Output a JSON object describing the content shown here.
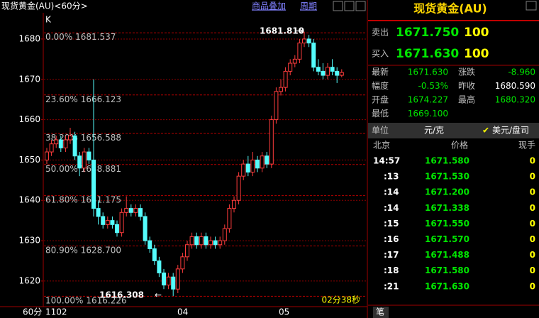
{
  "header": {
    "title": "现货黄金(AU)<60分>",
    "overlay": "商品叠加",
    "period": "周期"
  },
  "chart": {
    "type": "candlestick",
    "label": "K",
    "ylim": [
      1614,
      1686.5
    ],
    "yticks": [
      1620,
      1630,
      1640,
      1650,
      1660,
      1670,
      1680
    ],
    "grid": true,
    "up_color": "#ff3c3c",
    "down_color": "#54fcfc",
    "candles": [
      [
        1650,
        1653,
        1649,
        1652
      ],
      [
        1652,
        1655,
        1651,
        1654
      ],
      [
        1654,
        1656,
        1653,
        1655
      ],
      [
        1655,
        1656,
        1652,
        1653
      ],
      [
        1653,
        1656,
        1652,
        1655
      ],
      [
        1655,
        1658,
        1654,
        1656
      ],
      [
        1656,
        1657,
        1650,
        1651
      ],
      [
        1651,
        1652,
        1646,
        1648
      ],
      [
        1648,
        1653,
        1647,
        1652
      ],
      [
        1652,
        1653,
        1649,
        1650
      ],
      [
        1650,
        1670,
        1636,
        1638
      ],
      [
        1638,
        1640,
        1634,
        1636
      ],
      [
        1636,
        1637,
        1633,
        1634
      ],
      [
        1634,
        1636,
        1633,
        1635
      ],
      [
        1635,
        1636,
        1633,
        1634
      ],
      [
        1634,
        1635,
        1631,
        1632
      ],
      [
        1632,
        1638,
        1631,
        1637
      ],
      [
        1637,
        1641,
        1636,
        1638
      ],
      [
        1638,
        1639,
        1636,
        1637
      ],
      [
        1637,
        1639,
        1636,
        1638
      ],
      [
        1638,
        1639,
        1635,
        1636
      ],
      [
        1636,
        1637,
        1629,
        1630
      ],
      [
        1630,
        1631,
        1627,
        1628
      ],
      [
        1628,
        1629,
        1624,
        1625
      ],
      [
        1625,
        1626,
        1621,
        1622
      ],
      [
        1622,
        1623,
        1618,
        1619
      ],
      [
        1619,
        1622,
        1618,
        1621
      ],
      [
        1621,
        1622,
        1616.3,
        1618
      ],
      [
        1618,
        1624,
        1617,
        1623
      ],
      [
        1623,
        1627,
        1622,
        1626
      ],
      [
        1626,
        1630,
        1625,
        1629
      ],
      [
        1629,
        1632,
        1628,
        1631
      ],
      [
        1631,
        1632,
        1628,
        1629
      ],
      [
        1629,
        1632,
        1628,
        1631
      ],
      [
        1631,
        1632,
        1628,
        1629
      ],
      [
        1629,
        1631,
        1628,
        1630
      ],
      [
        1630,
        1631,
        1628,
        1629
      ],
      [
        1629,
        1631,
        1628,
        1630
      ],
      [
        1630,
        1634,
        1629,
        1633
      ],
      [
        1633,
        1639,
        1632,
        1638
      ],
      [
        1638,
        1641,
        1637,
        1640
      ],
      [
        1640,
        1647,
        1639,
        1646
      ],
      [
        1646,
        1650,
        1645,
        1649
      ],
      [
        1649,
        1651,
        1646,
        1647
      ],
      [
        1647,
        1652,
        1646,
        1650
      ],
      [
        1650,
        1651,
        1647,
        1648
      ],
      [
        1648,
        1652,
        1647,
        1651
      ],
      [
        1651,
        1652,
        1648,
        1649
      ],
      [
        1649,
        1661,
        1648,
        1660
      ],
      [
        1660,
        1668,
        1659,
        1667
      ],
      [
        1667,
        1670,
        1666,
        1668
      ],
      [
        1668,
        1673,
        1667,
        1672
      ],
      [
        1672,
        1675,
        1671,
        1674
      ],
      [
        1674,
        1676,
        1673,
        1675
      ],
      [
        1675,
        1680,
        1674,
        1679
      ],
      [
        1679,
        1681.81,
        1678,
        1680
      ],
      [
        1680,
        1681,
        1678,
        1679
      ],
      [
        1679,
        1680,
        1672,
        1673
      ],
      [
        1673,
        1675,
        1671,
        1672
      ],
      [
        1672,
        1674,
        1670,
        1671
      ],
      [
        1671,
        1674,
        1670,
        1673
      ],
      [
        1673,
        1675,
        1671,
        1672
      ],
      [
        1672,
        1673,
        1669.1,
        1671
      ],
      [
        1671,
        1672.5,
        1670.5,
        1671.7
      ]
    ],
    "fib": [
      {
        "level": "0.00%",
        "price": 1681.537
      },
      {
        "level": "23.60%",
        "price": 1666.123
      },
      {
        "level": "38.20%",
        "price": 1656.588
      },
      {
        "level": "50.00%",
        "price": 1648.881
      },
      {
        "level": "61.80%",
        "price": 1641.175
      },
      {
        "level": "80.90%",
        "price": {
          "value": 1628.7,
          "label": "1628.700"
        }
      },
      {
        "level": "100.00%",
        "price": 1616.226
      }
    ],
    "high_label": "1681.810",
    "low_label": "1616.308",
    "countdown": "02分38秒",
    "xlabels": [
      "1102",
      "04",
      "05"
    ],
    "period": "60分"
  },
  "quote": {
    "name": "现货黄金(AU)",
    "sell": {
      "label": "卖出",
      "price": "1671.750",
      "volume": "100"
    },
    "buy": {
      "label": "买入",
      "price": "1671.630",
      "volume": "100"
    },
    "stats": [
      [
        "最新",
        "1671.630",
        "涨跌",
        "-8.960"
      ],
      [
        "幅度",
        "-0.53%",
        "昨收",
        "1680.590"
      ],
      [
        "开盘",
        "1674.227",
        "最高",
        "1680.320"
      ],
      [
        "最低",
        "1669.100"
      ]
    ],
    "unit": {
      "label": "单位",
      "value": "元/克",
      "option": "美元/盘司"
    },
    "ticks": {
      "headers": [
        "北京",
        "价格",
        "现手"
      ],
      "rows": [
        [
          "14:57",
          "1671.580",
          "0"
        ],
        [
          ":13",
          "1671.530",
          "0"
        ],
        [
          ":14",
          "1671.200",
          "0"
        ],
        [
          ":14",
          "1671.338",
          "0"
        ],
        [
          ":15",
          "1671.550",
          "0"
        ],
        [
          ":16",
          "1671.570",
          "0"
        ],
        [
          ":17",
          "1671.488",
          "0"
        ],
        [
          ":18",
          "1671.580",
          "0"
        ],
        [
          ":21",
          "1671.630",
          "0"
        ]
      ]
    },
    "footer": "笔"
  }
}
